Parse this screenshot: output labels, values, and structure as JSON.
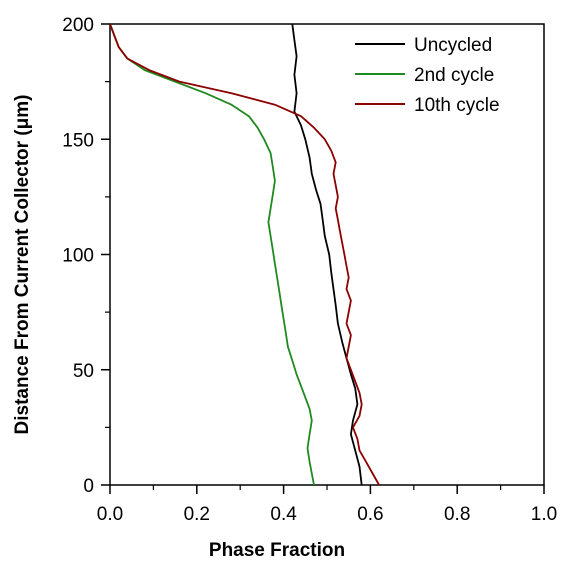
{
  "chart_data": {
    "type": "line",
    "title": "",
    "xlabel": "Phase Fraction",
    "ylabel": "Distance From Current Collector (μm)",
    "xlim": [
      0.0,
      1.0
    ],
    "ylim": [
      0,
      200
    ],
    "x_ticks": [
      "0.0",
      "0.2",
      "0.4",
      "0.6",
      "0.8",
      "1.0"
    ],
    "y_ticks": [
      "0",
      "50",
      "100",
      "150",
      "200"
    ],
    "grid": false,
    "legend_position": "top-right",
    "series": [
      {
        "name": "Uncycled",
        "color": "#000000",
        "points": [
          [
            0.58,
            0
          ],
          [
            0.575,
            8
          ],
          [
            0.565,
            15
          ],
          [
            0.555,
            22
          ],
          [
            0.56,
            28
          ],
          [
            0.57,
            35
          ],
          [
            0.565,
            42
          ],
          [
            0.555,
            48
          ],
          [
            0.545,
            55
          ],
          [
            0.535,
            62
          ],
          [
            0.525,
            70
          ],
          [
            0.52,
            78
          ],
          [
            0.515,
            85
          ],
          [
            0.51,
            92
          ],
          [
            0.505,
            100
          ],
          [
            0.495,
            108
          ],
          [
            0.49,
            115
          ],
          [
            0.485,
            122
          ],
          [
            0.475,
            128
          ],
          [
            0.465,
            135
          ],
          [
            0.46,
            142
          ],
          [
            0.45,
            150
          ],
          [
            0.44,
            156
          ],
          [
            0.425,
            162
          ],
          [
            0.43,
            170
          ],
          [
            0.425,
            178
          ],
          [
            0.43,
            186
          ],
          [
            0.425,
            193
          ],
          [
            0.42,
            200
          ]
        ]
      },
      {
        "name": "2nd cycle",
        "color": "#1f8a1f",
        "points": [
          [
            0.47,
            0
          ],
          [
            0.465,
            5
          ],
          [
            0.46,
            10
          ],
          [
            0.455,
            16
          ],
          [
            0.46,
            22
          ],
          [
            0.465,
            28
          ],
          [
            0.46,
            33
          ],
          [
            0.45,
            38
          ],
          [
            0.44,
            43
          ],
          [
            0.43,
            48
          ],
          [
            0.42,
            54
          ],
          [
            0.41,
            60
          ],
          [
            0.405,
            66
          ],
          [
            0.4,
            72
          ],
          [
            0.395,
            78
          ],
          [
            0.39,
            84
          ],
          [
            0.385,
            90
          ],
          [
            0.38,
            96
          ],
          [
            0.375,
            102
          ],
          [
            0.37,
            108
          ],
          [
            0.365,
            114
          ],
          [
            0.37,
            120
          ],
          [
            0.375,
            126
          ],
          [
            0.38,
            132
          ],
          [
            0.375,
            138
          ],
          [
            0.37,
            144
          ],
          [
            0.355,
            150
          ],
          [
            0.34,
            155
          ],
          [
            0.32,
            160
          ],
          [
            0.28,
            165
          ],
          [
            0.22,
            170
          ],
          [
            0.15,
            175
          ],
          [
            0.08,
            180
          ],
          [
            0.04,
            185
          ],
          [
            0.02,
            190
          ],
          [
            0.01,
            195
          ],
          [
            0.0,
            200
          ]
        ]
      },
      {
        "name": "10th cycle",
        "color": "#8b0000",
        "points": [
          [
            0.62,
            0
          ],
          [
            0.605,
            5
          ],
          [
            0.59,
            10
          ],
          [
            0.575,
            15
          ],
          [
            0.57,
            20
          ],
          [
            0.56,
            25
          ],
          [
            0.575,
            30
          ],
          [
            0.58,
            35
          ],
          [
            0.575,
            40
          ],
          [
            0.565,
            45
          ],
          [
            0.555,
            50
          ],
          [
            0.545,
            55
          ],
          [
            0.55,
            60
          ],
          [
            0.555,
            65
          ],
          [
            0.545,
            70
          ],
          [
            0.55,
            75
          ],
          [
            0.555,
            80
          ],
          [
            0.545,
            85
          ],
          [
            0.55,
            90
          ],
          [
            0.545,
            95
          ],
          [
            0.54,
            100
          ],
          [
            0.535,
            105
          ],
          [
            0.53,
            110
          ],
          [
            0.525,
            115
          ],
          [
            0.52,
            120
          ],
          [
            0.525,
            125
          ],
          [
            0.52,
            130
          ],
          [
            0.515,
            135
          ],
          [
            0.52,
            140
          ],
          [
            0.51,
            145
          ],
          [
            0.495,
            150
          ],
          [
            0.47,
            155
          ],
          [
            0.44,
            160
          ],
          [
            0.38,
            165
          ],
          [
            0.28,
            170
          ],
          [
            0.16,
            175
          ],
          [
            0.09,
            180
          ],
          [
            0.04,
            185
          ],
          [
            0.02,
            190
          ],
          [
            0.01,
            195
          ],
          [
            0.0,
            200
          ]
        ]
      }
    ]
  }
}
